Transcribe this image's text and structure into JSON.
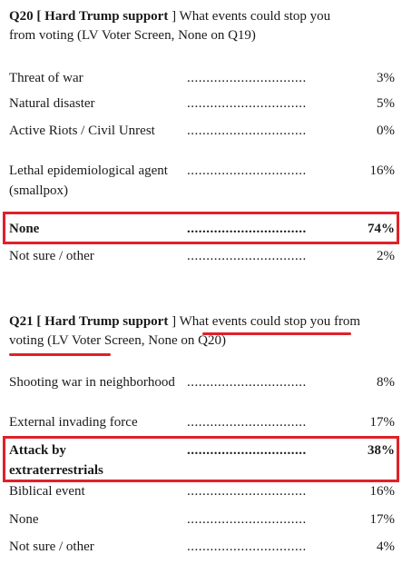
{
  "q20": {
    "prefix": "Q20 [ ",
    "tag": "Hard Trump support",
    "suffix": " ] What events could stop you from voting (LV Voter Screen, None on Q19)",
    "rows": [
      {
        "label": "Threat of war",
        "dots": "...............................",
        "pct": "3%"
      },
      {
        "label": "Natural disaster",
        "dots": "...............................",
        "pct": "5%"
      },
      {
        "label": "Active Riots / Civil Unrest",
        "dots": "...............................",
        "pct": "0%"
      },
      {
        "label": "Lethal epidemiological agent (smallpox)",
        "dots": "...............................",
        "pct": "16%"
      },
      {
        "label": "None",
        "dots": "...............................",
        "pct": "74%"
      },
      {
        "label": "Not sure / other",
        "dots": "...............................",
        "pct": "2%"
      }
    ]
  },
  "q21": {
    "prefix": "Q21 [ ",
    "tag": "Hard Trump support",
    "mid": " ] ",
    "highlight": "What events could stop you from voting",
    "suffix": " (LV Voter Screen, None on Q20)",
    "rows": [
      {
        "label": "Shooting war in neighborhood",
        "dots": "...............................",
        "pct": "8%"
      },
      {
        "label": "External invading force",
        "dots": "...............................",
        "pct": "17%"
      },
      {
        "label": "Attack by extraterrestrials",
        "dots": "...............................",
        "pct": "38%"
      },
      {
        "label": "Biblical event",
        "dots": "...............................",
        "pct": "16%"
      },
      {
        "label": "None",
        "dots": "...............................",
        "pct": "17%"
      },
      {
        "label": "Not sure / other",
        "dots": "...............................",
        "pct": "4%"
      }
    ]
  },
  "colors": {
    "highlight": "#e0202a"
  }
}
